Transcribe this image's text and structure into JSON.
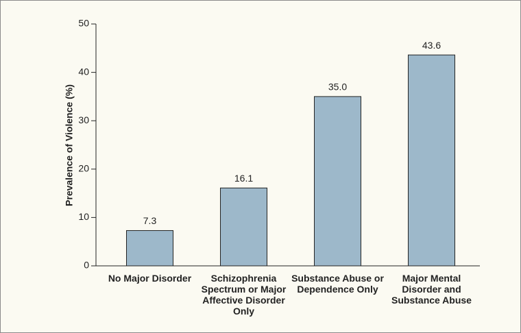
{
  "chart_data": {
    "type": "bar",
    "y_label": "Prevalence of Violence (%)",
    "categories": [
      "No Major Disorder",
      "Schizophrenia Spectrum or Major Affective Disorder Only",
      "Substance Abuse or Dependence Only",
      "Major Mental Disorder and Substance Abuse"
    ],
    "values": [
      7.3,
      16.1,
      35.0,
      43.6
    ],
    "value_labels": [
      "7.3",
      "16.1",
      "35.0",
      "43.6"
    ],
    "color": "#9db8ca",
    "ylim": [
      0,
      50
    ],
    "yticks": [
      0,
      10,
      20,
      30,
      40,
      50
    ],
    "grid": false
  }
}
